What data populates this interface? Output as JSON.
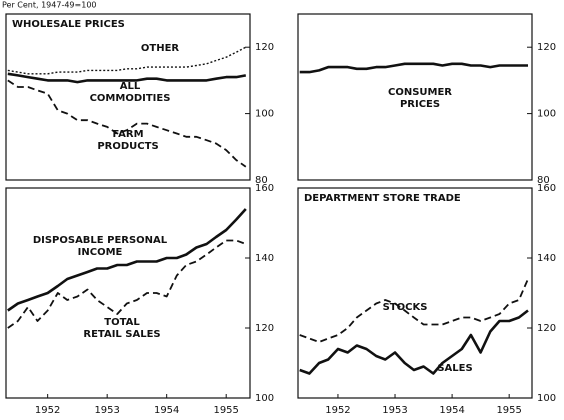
{
  "header": {
    "note": "Per Cent, 1947-49=100"
  },
  "chart_data": [
    {
      "type": "line",
      "title": "WHOLESALE PRICES",
      "x": [
        1951.83,
        1952,
        1952.17,
        1952.33,
        1952.5,
        1952.67,
        1952.83,
        1953,
        1953.17,
        1953.33,
        1953.5,
        1953.67,
        1953.83,
        1954,
        1954.17,
        1954.33,
        1954.5,
        1954.67,
        1954.83,
        1955,
        1955.17,
        1955.33,
        1955.5,
        1955.67,
        1955.83
      ],
      "xlim": [
        1951.8,
        1955.9
      ],
      "ylim": [
        80,
        130
      ],
      "yticks": [
        80,
        100,
        120
      ],
      "series": [
        {
          "name": "OTHER",
          "color": "#111",
          "style": "dotted",
          "values": [
            113,
            112.5,
            112,
            112,
            112,
            112.5,
            112.5,
            112.5,
            113,
            113,
            113,
            113,
            113.5,
            113.5,
            114,
            114,
            114,
            114,
            114,
            114.5,
            115,
            116,
            117,
            118.5,
            120
          ]
        },
        {
          "name": "ALL\nCOMMODITIES",
          "color": "#111",
          "style": "solid",
          "values": [
            112,
            111.5,
            111,
            110.5,
            110,
            110,
            110,
            109.5,
            110,
            110,
            110,
            110,
            110,
            110,
            110.5,
            110.5,
            110,
            110,
            110,
            110,
            110,
            110.5,
            111,
            111,
            111.5
          ]
        },
        {
          "name": "FARM\nPRODUCTS",
          "color": "#111",
          "style": "dashed",
          "values": [
            110,
            108,
            108,
            107,
            106,
            101,
            100,
            98,
            98,
            97,
            96,
            94,
            95,
            97,
            97,
            96,
            95,
            94,
            93,
            93,
            92,
            91,
            89,
            86,
            84
          ]
        }
      ]
    },
    {
      "type": "line",
      "x": [
        1951.83,
        1952,
        1952.17,
        1952.33,
        1952.5,
        1952.67,
        1952.83,
        1953,
        1953.17,
        1953.33,
        1953.5,
        1953.67,
        1953.83,
        1954,
        1954.17,
        1954.33,
        1954.5,
        1954.67,
        1954.83,
        1955,
        1955.17,
        1955.33,
        1955.5,
        1955.67,
        1955.83
      ],
      "xlim": [
        1951.8,
        1955.9
      ],
      "ylim": [
        80,
        130
      ],
      "yticks": [
        80,
        100,
        120
      ],
      "series": [
        {
          "name": "CONSUMER\nPRICES",
          "color": "#111",
          "style": "solid",
          "values": [
            112.5,
            112.5,
            113,
            114,
            114,
            114,
            113.5,
            113.5,
            114,
            114,
            114.5,
            115,
            115,
            115,
            115,
            114.5,
            115,
            115,
            114.5,
            114.5,
            114,
            114.5,
            114.5,
            114.5,
            114.5
          ]
        }
      ]
    },
    {
      "type": "line",
      "x": [
        1951.83,
        1952,
        1952.17,
        1952.33,
        1952.5,
        1952.67,
        1952.83,
        1953,
        1953.17,
        1953.33,
        1953.5,
        1953.67,
        1953.83,
        1954,
        1954.17,
        1954.33,
        1954.5,
        1954.67,
        1954.83,
        1955,
        1955.17,
        1955.33,
        1955.5,
        1955.67,
        1955.83
      ],
      "xlim": [
        1951.8,
        1955.9
      ],
      "ylim": [
        100,
        160
      ],
      "yticks": [
        100,
        120,
        140,
        160
      ],
      "xticks": [
        {
          "value": 1952.5,
          "label": "1952"
        },
        {
          "value": 1953.5,
          "label": "1953"
        },
        {
          "value": 1954.5,
          "label": "1954"
        },
        {
          "value": 1955.5,
          "label": "1955"
        }
      ],
      "series": [
        {
          "name": "DISPOSABLE PERSONAL\nINCOME",
          "color": "#111",
          "style": "solid",
          "values": [
            125,
            127,
            128,
            129,
            130,
            132,
            134,
            135,
            136,
            137,
            137,
            138,
            138,
            139,
            139,
            139,
            140,
            140,
            141,
            143,
            144,
            146,
            148,
            151,
            154
          ]
        },
        {
          "name": "TOTAL\nRETAIL SALES",
          "color": "#111",
          "style": "dashed",
          "values": [
            120,
            122,
            126,
            122,
            125,
            130,
            128,
            129,
            131,
            128,
            126,
            124,
            127,
            128,
            130,
            130,
            129,
            135,
            138,
            139,
            141,
            143,
            145,
            145,
            144
          ]
        }
      ]
    },
    {
      "type": "line",
      "title": "DEPARTMENT STORE TRADE",
      "x": [
        1951.83,
        1952,
        1952.17,
        1952.33,
        1952.5,
        1952.67,
        1952.83,
        1953,
        1953.17,
        1953.33,
        1953.5,
        1953.67,
        1953.83,
        1954,
        1954.17,
        1954.33,
        1954.5,
        1954.67,
        1954.83,
        1955,
        1955.17,
        1955.33,
        1955.5,
        1955.67,
        1955.83
      ],
      "xlim": [
        1951.8,
        1955.9
      ],
      "ylim": [
        100,
        160
      ],
      "yticks": [
        100,
        120,
        140,
        160
      ],
      "xticks": [
        {
          "value": 1952.5,
          "label": "1952"
        },
        {
          "value": 1953.5,
          "label": "1953"
        },
        {
          "value": 1954.5,
          "label": "1954"
        },
        {
          "value": 1955.5,
          "label": "1955"
        }
      ],
      "series": [
        {
          "name": "STOCKS",
          "color": "#111",
          "style": "dashed",
          "values": [
            118,
            117,
            116,
            117,
            118,
            120,
            123,
            125,
            127,
            128,
            127,
            125,
            123,
            121,
            121,
            121,
            122,
            123,
            123,
            122,
            123,
            124,
            127,
            128,
            134
          ]
        },
        {
          "name": "SALES",
          "color": "#111",
          "style": "solid",
          "values": [
            108,
            107,
            110,
            111,
            114,
            113,
            115,
            114,
            112,
            111,
            113,
            110,
            108,
            109,
            107,
            110,
            112,
            114,
            118,
            113,
            119,
            122,
            122,
            123,
            125
          ]
        }
      ]
    }
  ]
}
